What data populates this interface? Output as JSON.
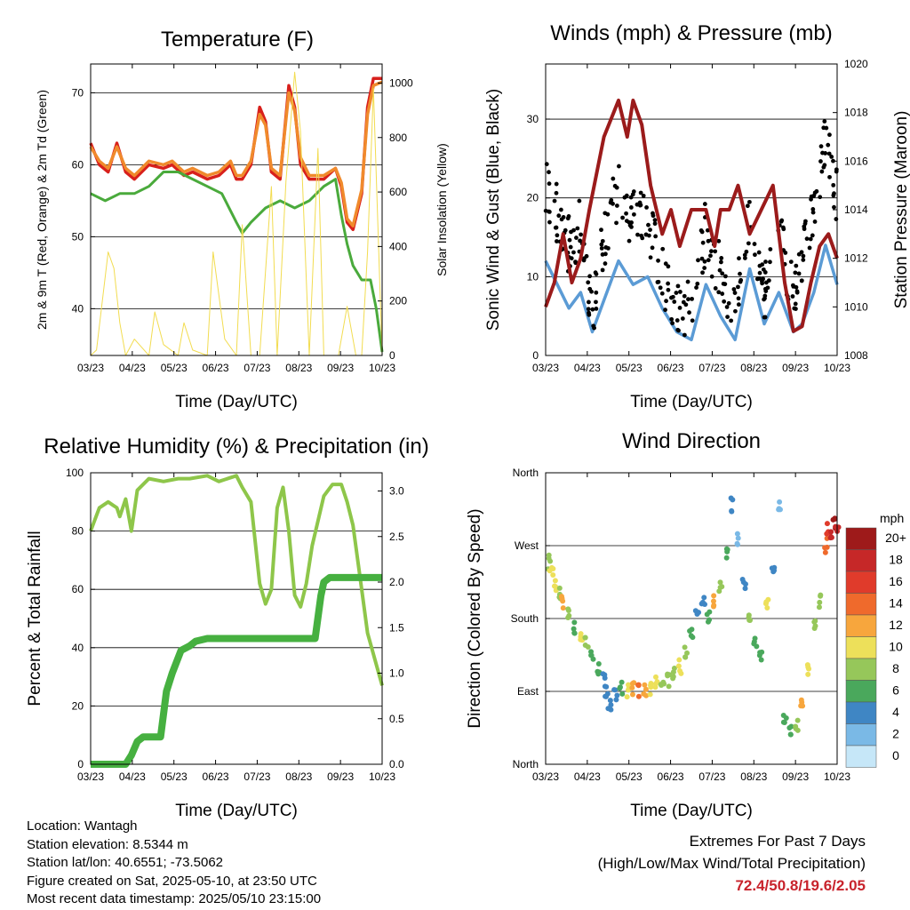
{
  "footer": {
    "location": "Location: Wantagh",
    "elevation": "Station elevation: 8.5344 m",
    "latlon": "Station lat/lon: 40.6551; -73.5062",
    "created": "Figure created on Sat, 2025-05-10, at 23:50 UTC",
    "recent": "Most recent data timestamp: 2025/05/10 23:15:00"
  },
  "extremes": {
    "title": "Extremes For Past 7 Days",
    "subtitle": "(High/Low/Max Wind/Total Precipitation)",
    "value": "72.4/50.8/19.6/2.05"
  },
  "colors": {
    "temp2m": "#d8201c",
    "temp9m": "#f08a2c",
    "td": "#4aaa3c",
    "solar": "#f2dc50",
    "wind": "#5b9bd5",
    "gust": "#000000",
    "pressure": "#9b1b1b",
    "rh": "#8ec64a",
    "precip": "#46b040"
  },
  "chart_data": [
    {
      "id": "temperature",
      "type": "line",
      "title": "Temperature (F)",
      "xlabel": "Time (Day/UTC)",
      "ylabel": "2m & 9m T (Red, Orange) & 2m Td (Green)",
      "y2label": "Solar Insolation (Yellow)",
      "xticks": [
        "03/23",
        "04/23",
        "05/23",
        "06/23",
        "07/23",
        "08/23",
        "09/23",
        "10/23"
      ],
      "ylim": [
        33.5,
        74
      ],
      "yticks": [
        40,
        50,
        60,
        70
      ],
      "y2lim": [
        0,
        1070
      ],
      "y2ticks": [
        0,
        200,
        400,
        600,
        800,
        1000
      ],
      "grid": true,
      "series": [
        {
          "name": "2m T",
          "color": "#d8201c",
          "x": [
            0,
            0.03,
            0.06,
            0.09,
            0.12,
            0.15,
            0.2,
            0.25,
            0.28,
            0.32,
            0.35,
            0.4,
            0.44,
            0.48,
            0.5,
            0.52,
            0.55,
            0.58,
            0.6,
            0.62,
            0.65,
            0.68,
            0.7,
            0.72,
            0.75,
            0.8,
            0.84,
            0.86,
            0.88,
            0.9,
            0.93,
            0.95,
            0.97,
            1.0
          ],
          "values": [
            63,
            60,
            59,
            63,
            59,
            58,
            60,
            59.5,
            60,
            58.5,
            59,
            58,
            58.5,
            60,
            58,
            58,
            60,
            68,
            66,
            59,
            58,
            71,
            68,
            60,
            58,
            58,
            59.5,
            57,
            52,
            51,
            56,
            68,
            72,
            72
          ]
        },
        {
          "name": "9m T",
          "color": "#f08a2c",
          "x": [
            0,
            0.03,
            0.06,
            0.09,
            0.12,
            0.15,
            0.2,
            0.25,
            0.28,
            0.32,
            0.35,
            0.4,
            0.44,
            0.48,
            0.5,
            0.52,
            0.55,
            0.58,
            0.6,
            0.62,
            0.65,
            0.68,
            0.7,
            0.72,
            0.75,
            0.8,
            0.84,
            0.86,
            0.88,
            0.9,
            0.93,
            0.95,
            0.97,
            1.0
          ],
          "values": [
            62.5,
            60.5,
            59.5,
            62.5,
            59.5,
            58.5,
            60.5,
            60,
            60.5,
            59,
            59.5,
            58.5,
            59,
            60.5,
            58.5,
            58.5,
            60.5,
            67,
            65.5,
            59.5,
            58.5,
            70,
            67.5,
            61,
            58.5,
            58.5,
            59.5,
            57.5,
            52.5,
            51.5,
            56.5,
            67,
            71,
            71.5
          ]
        },
        {
          "name": "2m Td",
          "color": "#4aaa3c",
          "x": [
            0,
            0.05,
            0.1,
            0.15,
            0.2,
            0.25,
            0.3,
            0.35,
            0.4,
            0.45,
            0.5,
            0.52,
            0.55,
            0.6,
            0.65,
            0.7,
            0.75,
            0.8,
            0.84,
            0.86,
            0.88,
            0.9,
            0.93,
            0.96,
            0.98,
            1.0
          ],
          "values": [
            56,
            55,
            56,
            56,
            57,
            59,
            59,
            58,
            57,
            56,
            52,
            50.5,
            52,
            54,
            55,
            54,
            55,
            57,
            58,
            53,
            49,
            46,
            44,
            44,
            40,
            34
          ]
        },
        {
          "name": "Solar Insolation",
          "color": "#f2dc50",
          "axis": "y2",
          "x": [
            0,
            0.02,
            0.06,
            0.08,
            0.1,
            0.12,
            0.15,
            0.2,
            0.22,
            0.25,
            0.3,
            0.32,
            0.35,
            0.4,
            0.42,
            0.46,
            0.5,
            0.52,
            0.55,
            0.58,
            0.62,
            0.64,
            0.67,
            0.7,
            0.72,
            0.75,
            0.78,
            0.8,
            0.85,
            0.88,
            0.91,
            0.93,
            0.95,
            0.97,
            1.0
          ],
          "values": [
            0,
            20,
            380,
            320,
            120,
            0,
            60,
            0,
            160,
            40,
            0,
            120,
            20,
            0,
            380,
            60,
            0,
            480,
            0,
            0,
            620,
            0,
            640,
            1040,
            820,
            0,
            760,
            0,
            0,
            180,
            0,
            0,
            380,
            980,
            0
          ]
        }
      ]
    },
    {
      "id": "winds",
      "type": "line",
      "title": "Winds (mph) & Pressure (mb)",
      "xlabel": "Time (Day/UTC)",
      "ylabel": "Sonic Wind & Gust (Blue, Black)",
      "y2label": "Station Pressure (Maroon)",
      "xticks": [
        "03/23",
        "04/23",
        "05/23",
        "06/23",
        "07/23",
        "08/23",
        "09/23",
        "10/23"
      ],
      "ylim": [
        0,
        37
      ],
      "yticks": [
        0,
        10,
        20,
        30
      ],
      "y2lim": [
        1008,
        1020
      ],
      "y2ticks": [
        1008,
        1010,
        1012,
        1014,
        1016,
        1018,
        1020
      ],
      "grid": true,
      "series": [
        {
          "name": "Sonic Wind",
          "color": "#5b9bd5",
          "x": [
            0,
            0.04,
            0.08,
            0.12,
            0.16,
            0.2,
            0.25,
            0.3,
            0.35,
            0.4,
            0.45,
            0.5,
            0.55,
            0.6,
            0.65,
            0.7,
            0.75,
            0.8,
            0.85,
            0.88,
            0.92,
            0.96,
            1.0
          ],
          "values": [
            12,
            9,
            6,
            8,
            3,
            7,
            12,
            9,
            10,
            6,
            3,
            2,
            9,
            5,
            2,
            11,
            4,
            8,
            3,
            4,
            8,
            14,
            9
          ]
        },
        {
          "name": "Gust",
          "color": "#000000",
          "x": [
            0,
            0.04,
            0.08,
            0.12,
            0.16,
            0.2,
            0.25,
            0.3,
            0.35,
            0.4,
            0.45,
            0.5,
            0.55,
            0.6,
            0.65,
            0.7,
            0.75,
            0.8,
            0.85,
            0.88,
            0.92,
            0.96,
            1.0
          ],
          "values": [
            22,
            18,
            14,
            16,
            6,
            14,
            22,
            17,
            18,
            10,
            7,
            5,
            16,
            10,
            5,
            19,
            8,
            15,
            7,
            12,
            18,
            27,
            20
          ]
        },
        {
          "name": "Station Pressure",
          "color": "#9b1b1b",
          "axis": "y2",
          "x": [
            0,
            0.03,
            0.06,
            0.09,
            0.12,
            0.15,
            0.2,
            0.25,
            0.28,
            0.3,
            0.33,
            0.36,
            0.4,
            0.43,
            0.46,
            0.5,
            0.55,
            0.58,
            0.6,
            0.63,
            0.66,
            0.7,
            0.74,
            0.78,
            0.82,
            0.85,
            0.88,
            0.91,
            0.94,
            0.97,
            1.0
          ],
          "values": [
            1010,
            1011,
            1013,
            1011,
            1012,
            1014,
            1017,
            1018.5,
            1017,
            1018.5,
            1017.5,
            1015,
            1013,
            1014,
            1012.5,
            1014,
            1014,
            1012.5,
            1014,
            1014,
            1015,
            1013,
            1014,
            1015,
            1011,
            1009,
            1009.2,
            1011,
            1012.5,
            1013,
            1012
          ]
        }
      ]
    },
    {
      "id": "humidity",
      "type": "line",
      "title": "Relative Humidity (%) & Precipitation (in)",
      "xlabel": "Time (Day/UTC)",
      "ylabel": "Percent & Total Rainfall",
      "xticks": [
        "03/23",
        "04/23",
        "05/23",
        "06/23",
        "07/23",
        "08/23",
        "09/23",
        "10/23"
      ],
      "ylim": [
        0,
        100
      ],
      "yticks": [
        0,
        20,
        40,
        60,
        80,
        100
      ],
      "y2lim": [
        0,
        3.2
      ],
      "y2ticks": [
        "0.0",
        "0.5",
        "1.0",
        "1.5",
        "2.0",
        "2.5",
        "3.0"
      ],
      "grid": true,
      "series": [
        {
          "name": "Relative Humidity",
          "color": "#8ec64a",
          "x": [
            0,
            0.03,
            0.06,
            0.09,
            0.1,
            0.12,
            0.14,
            0.16,
            0.2,
            0.25,
            0.3,
            0.34,
            0.4,
            0.44,
            0.5,
            0.52,
            0.55,
            0.58,
            0.6,
            0.62,
            0.64,
            0.66,
            0.68,
            0.7,
            0.72,
            0.74,
            0.76,
            0.8,
            0.83,
            0.86,
            0.88,
            0.9,
            0.93,
            0.95,
            1.0
          ],
          "values": [
            80,
            88,
            90,
            88,
            85,
            91,
            80,
            94,
            98,
            97,
            98,
            98,
            99,
            97,
            99,
            95,
            90,
            62,
            55,
            60,
            88,
            95,
            80,
            58,
            54,
            62,
            75,
            92,
            96,
            96,
            90,
            82,
            60,
            45,
            27
          ]
        },
        {
          "name": "Total Rainfall",
          "color": "#46b040",
          "axis": "y2",
          "x": [
            0,
            0.12,
            0.14,
            0.16,
            0.18,
            0.24,
            0.26,
            0.28,
            0.31,
            0.34,
            0.36,
            0.4,
            0.7,
            0.77,
            0.79,
            0.8,
            0.82,
            0.84,
            0.9,
            1.0
          ],
          "values": [
            0,
            0,
            0.1,
            0.25,
            0.3,
            0.3,
            0.8,
            1.0,
            1.25,
            1.3,
            1.35,
            1.38,
            1.38,
            1.38,
            1.85,
            2.0,
            2.05,
            2.05,
            2.05,
            2.05
          ]
        }
      ]
    },
    {
      "id": "wind-direction",
      "type": "scatter",
      "title": "Wind Direction",
      "xlabel": "Time (Day/UTC)",
      "ylabel": "Direction (Colored By Speed)",
      "xticks": [
        "03/23",
        "04/23",
        "05/23",
        "06/23",
        "07/23",
        "08/23",
        "09/23",
        "10/23"
      ],
      "yticks": [
        "North",
        "East",
        "South",
        "West",
        "North"
      ],
      "ylim": [
        0,
        360
      ],
      "grid": true,
      "colorbar": {
        "title": "mph",
        "labels": [
          "20+",
          "18",
          "16",
          "14",
          "12",
          "10",
          "8",
          "6",
          "4",
          "2",
          "0"
        ],
        "colors": [
          "#9e1a1a",
          "#c62828",
          "#e03b2b",
          "#ef6a2c",
          "#f7a63d",
          "#ede05a",
          "#96c75a",
          "#4aa85c",
          "#3f86c4",
          "#7ab9e6",
          "#c6e7f8"
        ]
      },
      "points": [
        [
          0.01,
          250,
          8
        ],
        [
          0.02,
          240,
          10
        ],
        [
          0.03,
          220,
          9
        ],
        [
          0.05,
          210,
          7
        ],
        [
          0.06,
          200,
          11
        ],
        [
          0.08,
          190,
          8
        ],
        [
          0.1,
          170,
          6
        ],
        [
          0.12,
          160,
          9
        ],
        [
          0.14,
          150,
          8
        ],
        [
          0.16,
          135,
          6
        ],
        [
          0.18,
          120,
          5
        ],
        [
          0.2,
          105,
          4
        ],
        [
          0.21,
          90,
          3
        ],
        [
          0.22,
          75,
          3
        ],
        [
          0.24,
          85,
          4
        ],
        [
          0.26,
          95,
          6
        ],
        [
          0.28,
          90,
          9
        ],
        [
          0.3,
          95,
          12
        ],
        [
          0.32,
          92,
          13
        ],
        [
          0.34,
          90,
          11
        ],
        [
          0.36,
          95,
          9
        ],
        [
          0.38,
          100,
          10
        ],
        [
          0.4,
          98,
          8
        ],
        [
          0.42,
          105,
          7
        ],
        [
          0.44,
          110,
          8
        ],
        [
          0.46,
          120,
          10
        ],
        [
          0.48,
          140,
          8
        ],
        [
          0.5,
          165,
          6
        ],
        [
          0.52,
          190,
          4
        ],
        [
          0.54,
          200,
          3
        ],
        [
          0.56,
          180,
          5
        ],
        [
          0.58,
          200,
          11
        ],
        [
          0.6,
          220,
          8
        ],
        [
          0.62,
          260,
          6
        ],
        [
          0.64,
          320,
          3
        ],
        [
          0.66,
          280,
          2
        ],
        [
          0.68,
          220,
          4
        ],
        [
          0.7,
          180,
          7
        ],
        [
          0.72,
          150,
          6
        ],
        [
          0.74,
          130,
          5
        ],
        [
          0.76,
          200,
          9
        ],
        [
          0.78,
          240,
          3
        ],
        [
          0.8,
          320,
          2
        ],
        [
          0.82,
          60,
          6
        ],
        [
          0.84,
          40,
          5
        ],
        [
          0.86,
          50,
          8
        ],
        [
          0.88,
          80,
          12
        ],
        [
          0.9,
          120,
          10
        ],
        [
          0.92,
          170,
          7
        ],
        [
          0.94,
          200,
          8
        ],
        [
          0.96,
          270,
          13
        ],
        [
          0.97,
          290,
          16
        ],
        [
          0.98,
          280,
          18
        ],
        [
          0.99,
          295,
          20
        ],
        [
          1.0,
          285,
          17
        ]
      ]
    }
  ]
}
